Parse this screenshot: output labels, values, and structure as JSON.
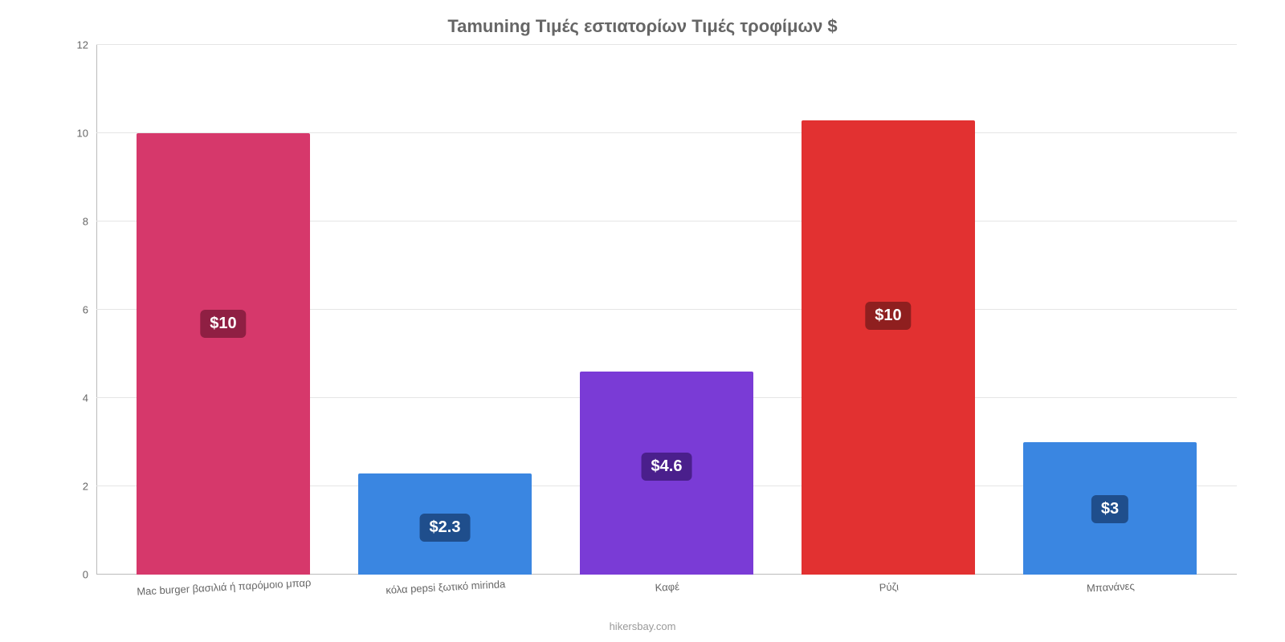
{
  "chart": {
    "type": "bar",
    "title": "Tamuning Τιμές εστιατορίων Τιμές τροφίμων $",
    "title_fontsize": 22,
    "title_color": "#666666",
    "background_color": "#ffffff",
    "grid_color": "#e5e5e5",
    "axis_color": "#bbbbbb",
    "tick_color": "#666666",
    "tick_fontsize": 13,
    "xlabel_fontsize": 13,
    "xlabel_rotation_deg": -3,
    "ylim": [
      0,
      12
    ],
    "ytick_step": 2,
    "yticks": [
      0,
      2,
      4,
      6,
      8,
      10,
      12
    ],
    "bar_width_pct": 78,
    "categories": [
      "Mac burger βασιλιά ή παρόμοιο μπαρ",
      "κόλα pepsi ξωτικό mirinda",
      "Καφέ",
      "Ρύζι",
      "Μπανάνες"
    ],
    "values": [
      10,
      2.3,
      4.6,
      10.3,
      3
    ],
    "value_labels": [
      "$10",
      "$2.3",
      "$4.6",
      "$10",
      "$3"
    ],
    "bar_colors": [
      "#d6386b",
      "#3a86e1",
      "#7a3bd6",
      "#e23131",
      "#3a86e1"
    ],
    "label_bg_colors": [
      "#8f1f43",
      "#1f4e8c",
      "#4a1f8c",
      "#8f1f1f",
      "#1f4e8c"
    ],
    "label_fontsize": 20,
    "label_text_color": "#ffffff",
    "attribution": "hikersbay.com",
    "attribution_color": "#999999",
    "attribution_fontsize": 13
  }
}
